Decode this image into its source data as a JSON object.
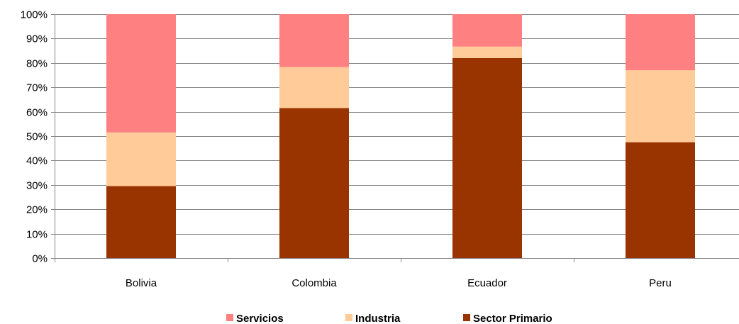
{
  "chart_data": {
    "type": "bar",
    "stacked": true,
    "percent": true,
    "categories": [
      "Bolivia",
      "Colombia",
      "Ecuador",
      "Peru"
    ],
    "series": [
      {
        "name": "Sector Primario",
        "color": "#993300",
        "values": [
          29.5,
          61.5,
          82.0,
          47.5
        ]
      },
      {
        "name": "Industria",
        "color": "#FFCC99",
        "values": [
          22.0,
          16.8,
          4.7,
          29.5
        ]
      },
      {
        "name": "Servicios",
        "color": "#FF8080",
        "values": [
          48.5,
          21.7,
          13.3,
          23.0
        ]
      }
    ],
    "ylim": [
      0,
      100
    ],
    "yticks": [
      "0%",
      "10%",
      "20%",
      "30%",
      "40%",
      "50%",
      "60%",
      "70%",
      "80%",
      "90%",
      "100%"
    ],
    "grid": true,
    "legend_position": "bottom",
    "legend_order": [
      "Servicios",
      "Industria",
      "Sector Primario"
    ],
    "title": "",
    "xlabel": "",
    "ylabel": ""
  }
}
